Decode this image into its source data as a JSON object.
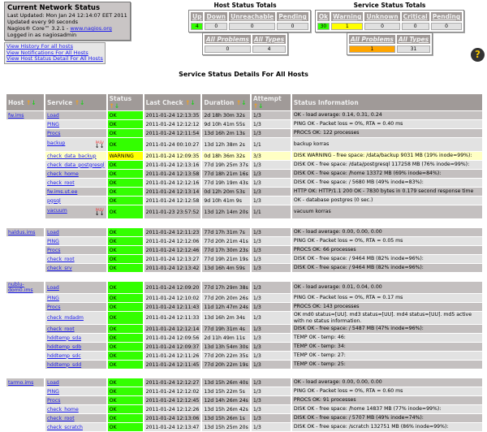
{
  "info": {
    "title": "Current Network Status",
    "updated": "Last Updated: Mon Jan 24 12:14:07 EET 2011",
    "interval": "Updated every 90 seconds",
    "version": "Nagios® Core™ 3.2.1 - ",
    "site": "www.nagios.org",
    "login": "Logged in as nagiosadmin"
  },
  "links": [
    "View History For all hosts",
    "View Notifications For All Hosts",
    "View Host Status Detail For All Hosts"
  ],
  "host_totals": {
    "title": "Host Status Totals",
    "headers": [
      "Up",
      "Down",
      "Unreachable",
      "Pending"
    ],
    "values": [
      "4",
      "0",
      "0",
      "0"
    ],
    "sum_headers": [
      "All Problems",
      "All Types"
    ],
    "sums": [
      "0",
      "4"
    ]
  },
  "service_totals": {
    "title": "Service Status Totals",
    "headers": [
      "Ok",
      "Warning",
      "Unknown",
      "Critical",
      "Pending"
    ],
    "values": [
      "30",
      "1",
      "0",
      "0",
      "0"
    ],
    "sum_headers": [
      "All Problems",
      "All Types"
    ],
    "sums": [
      "1",
      "31"
    ]
  },
  "help_icon": "question-mark-icon",
  "page_title": "Service Status Details For All Hosts",
  "columns": [
    "Host",
    "Service",
    "Status",
    "Last Check",
    "Duration",
    "Attempt",
    "Status Information"
  ],
  "colors": {
    "ok": "#33ff00",
    "warning": "#ffff00",
    "problems": "#ffa500",
    "header": "#a09a98"
  },
  "groups": [
    {
      "host": "fw.ims",
      "rows": [
        [
          "Load",
          "OK",
          "2011-01-24 12:13:35",
          "2d 18h 30m 32s",
          "1/3",
          "OK - load average: 0.14, 0.31, 0.24"
        ],
        [
          "PING",
          "OK",
          "2011-01-24 12:12:12",
          "9d 10h 41m 55s",
          "1/3",
          "PING OK - Packet loss = 0%, RTA = 0.40 ms"
        ],
        [
          "Procs",
          "OK",
          "2011-01-24 12:11:54",
          "13d 16h 2m 13s",
          "1/3",
          "PROCS OK: 122 processes"
        ],
        [
          "backup",
          "OK",
          "2011-01-24 00:10:27",
          "13d 12h 38m 2s",
          "1/1",
          "backup korras",
          "PASV"
        ],
        [
          "check_data_backup",
          "WARNING",
          "2011-01-24 12:09:35",
          "0d 18h 36m 32s",
          "3/3",
          "DISK WARNING - free space: /data/backup 9031 MB (19% inode=99%):"
        ],
        [
          "check_data_postgresql",
          "OK",
          "2011-01-24 12:13:16",
          "77d 19h 25m 37s",
          "1/3",
          "DISK OK - free space: /data/postgresql 117258 MB (76% inode=99%):"
        ],
        [
          "check_home",
          "OK",
          "2011-01-24 12:13:58",
          "77d 18h 21m 16s",
          "1/3",
          "DISK OK - free space: /home 13372 MB (69% inode=84%):"
        ],
        [
          "check_root",
          "OK",
          "2011-01-24 12:12:16",
          "77d 19h 19m 43s",
          "1/3",
          "DISK OK - free space: / 5680 MB (49% inode=83%):"
        ],
        [
          "fw.ims.ut.ee",
          "OK",
          "2011-01-24 12:13:14",
          "0d 12h 20m 53s",
          "1/3",
          "HTTP OK: HTTP/1.1 200 OK - 7830 bytes in 0.179 second response time"
        ],
        [
          "pgsql",
          "OK",
          "2011-01-24 12:12:58",
          "9d 10h 41m 9s",
          "1/3",
          "OK - database postgres (0 sec.)"
        ],
        [
          "vacuum",
          "OK",
          "2011-01-23 23:57:52",
          "13d 12h 14m 20s",
          "1/1",
          "vacuum korras",
          "PASV"
        ]
      ]
    },
    {
      "host": "haldus.ims",
      "rows": [
        [
          "Load",
          "OK",
          "2011-01-24 12:11:23",
          "77d 17h 31m 7s",
          "1/3",
          "OK - load average: 0.00, 0.00, 0.00"
        ],
        [
          "PING",
          "OK",
          "2011-01-24 12:12:06",
          "77d 20h 21m 41s",
          "1/3",
          "PING OK - Packet loss = 0%, RTA = 0.05 ms"
        ],
        [
          "Procs",
          "OK",
          "2011-01-24 12:12:46",
          "77d 17h 30m 23s",
          "1/3",
          "PROCS OK: 66 processes"
        ],
        [
          "check_root",
          "OK",
          "2011-01-24 12:13:27",
          "77d 19h 21m 19s",
          "1/3",
          "DISK OK - free space: / 9464 MB (82% inode=96%):"
        ],
        [
          "check_srv",
          "OK",
          "2011-01-24 12:13:42",
          "13d 16h 4m 59s",
          "1/3",
          "DISK OK - free space: / 9464 MB (82% inode=96%):"
        ]
      ]
    },
    {
      "host": "nublu-dom0.ims",
      "rows": [
        [
          "Load",
          "OK",
          "2011-01-24 12:09:20",
          "77d 17h 29m 38s",
          "1/3",
          "OK - load average: 0.01, 0.04, 0.00"
        ],
        [
          "PING",
          "OK",
          "2011-01-24 12:10:02",
          "77d 20h 20m 26s",
          "1/3",
          "PING OK - Packet loss = 0%, RTA = 0.17 ms"
        ],
        [
          "Procs",
          "OK",
          "2011-01-24 12:11:43",
          "11d 12h 47m 24s",
          "1/3",
          "PROCS OK: 143 processes"
        ],
        [
          "check_mdadm",
          "OK",
          "2011-01-24 12:11:33",
          "13d 16h 2m 34s",
          "1/3",
          "OK md0 status=[UU]. md3 status=[UU]. md4 status=[UU]. md5 active with no status information."
        ],
        [
          "check_root",
          "OK",
          "2011-01-24 12:12:14",
          "77d 19h 31m 4s",
          "1/3",
          "DISK OK - free space: / 5487 MB (47% inode=96%):"
        ],
        [
          "hddtemp_sda",
          "OK",
          "2011-01-24 12:09:56",
          "2d 11h 49m 11s",
          "1/3",
          "TEMP OK - temp: 46:"
        ],
        [
          "hddtemp_sdb",
          "OK",
          "2011-01-24 12:09:37",
          "13d 13h 54m 30s",
          "1/3",
          "TEMP OK - temp: 34:"
        ],
        [
          "hddtemp_sdc",
          "OK",
          "2011-01-24 12:11:26",
          "77d 20h 22m 35s",
          "1/3",
          "TEMP OK - temp: 27:"
        ],
        [
          "hddtemp_sdd",
          "OK",
          "2011-01-24 12:11:45",
          "77d 20h 22m 19s",
          "1/3",
          "TEMP OK - temp: 25:"
        ]
      ]
    },
    {
      "host": "tarmo.ims",
      "rows": [
        [
          "Load",
          "OK",
          "2011-01-24 12:12:27",
          "13d 15h 26m 40s",
          "1/3",
          "OK - load average: 0.00, 0.00, 0.00"
        ],
        [
          "PING",
          "OK",
          "2011-01-24 12:12:02",
          "13d 15h 22m 5s",
          "1/3",
          "PING OK - Packet loss = 0%, RTA = 0.60 ms"
        ],
        [
          "Procs",
          "OK",
          "2011-01-24 12:12:45",
          "12d 14h 26m 24s",
          "1/3",
          "PROCS OK: 91 processes"
        ],
        [
          "check_home",
          "OK",
          "2011-01-24 12:12:26",
          "13d 15h 26m 42s",
          "1/3",
          "DISK OK - free space: /home 14837 MB (77% inode=99%):"
        ],
        [
          "check_root",
          "OK",
          "2011-01-24 12:13:06",
          "13d 15h 26m 1s",
          "1/3",
          "DISK OK - free space: / 5707 MB (49% inode=74%):"
        ],
        [
          "check_scratch",
          "OK",
          "2011-01-24 12:13:47",
          "13d 15h 25m 20s",
          "1/3",
          "DISK OK - free space: /scratch 132751 MB (86% inode=99%):"
        ]
      ]
    }
  ]
}
